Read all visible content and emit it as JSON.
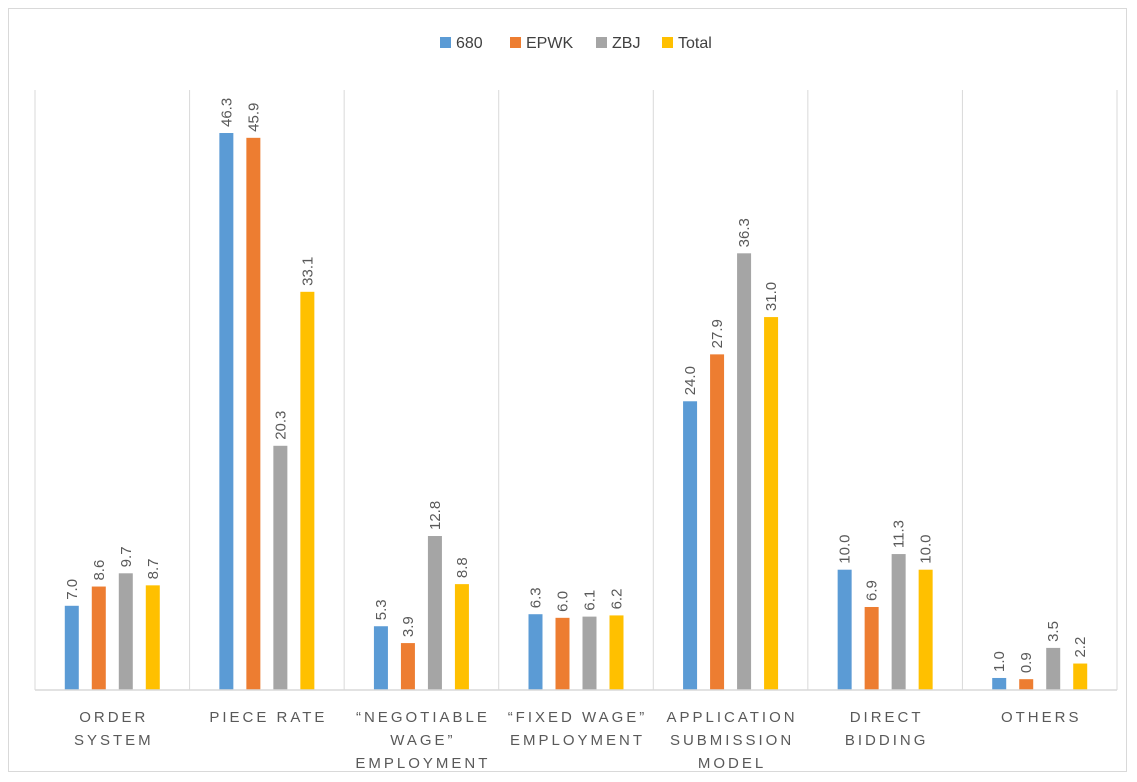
{
  "chart_data": {
    "type": "bar",
    "categories": [
      [
        "ORDER",
        "SYSTEM"
      ],
      [
        "PIECE RATE"
      ],
      [
        "“NEGOTIABLE",
        "WAGE”",
        "EMPLOYMENT"
      ],
      [
        "“FIXED WAGE”",
        "EMPLOYMENT"
      ],
      [
        "APPLICATION",
        "SUBMISSION",
        "MODEL"
      ],
      [
        "DIRECT",
        "BIDDING"
      ],
      [
        "OTHERS"
      ]
    ],
    "series": [
      {
        "name": "680",
        "color": "#5b9bd5",
        "values": [
          7.0,
          46.3,
          5.3,
          6.3,
          24.0,
          10.0,
          1.0
        ]
      },
      {
        "name": "EPWK",
        "color": "#ed7d31",
        "values": [
          8.6,
          45.9,
          3.9,
          6.0,
          27.9,
          6.9,
          0.9
        ]
      },
      {
        "name": "ZBJ",
        "color": "#a5a5a5",
        "values": [
          9.7,
          20.3,
          12.8,
          6.1,
          36.3,
          11.3,
          3.5
        ]
      },
      {
        "name": "Total",
        "color": "#ffc000",
        "values": [
          8.7,
          33.1,
          8.8,
          6.2,
          31.0,
          10.0,
          2.2
        ]
      }
    ],
    "ylim": [
      0,
      50
    ],
    "grid": false,
    "legend": "top-center",
    "title": "",
    "xlabel": "",
    "ylabel": ""
  }
}
